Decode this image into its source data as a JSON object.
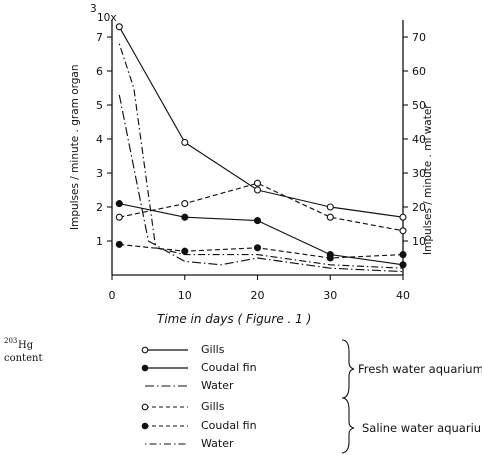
{
  "side_label": {
    "isotope": "203",
    "element": "Hg",
    "line2": "content"
  },
  "left_axis_multiplier": {
    "prefix": "3",
    "suffix": "10x"
  },
  "legend": {
    "groups": [
      {
        "label": "Fresh water aquarium",
        "entries": [
          {
            "label": "Gills",
            "marker": "open",
            "style": "solid"
          },
          {
            "label": "Coudal fin",
            "marker": "filled",
            "style": "solid"
          },
          {
            "label": "Water",
            "marker": "none",
            "style": "dashdot"
          }
        ]
      },
      {
        "label": "Saline   water aquarium",
        "entries": [
          {
            "label": "Gills",
            "marker": "open",
            "style": "dashed"
          },
          {
            "label": "Coudal fin",
            "marker": "filled",
            "style": "dashed"
          },
          {
            "label": "Water",
            "marker": "none",
            "style": "dotdashed"
          }
        ]
      }
    ]
  },
  "chart_data": {
    "type": "line",
    "xlabel": "Time  in  days  ( Figure . 1 )",
    "ylabel_left": "Impulses / minute . gram organ",
    "ylabel_right": "Impulses / minute . ml water",
    "xlim": [
      0,
      40
    ],
    "ylim_left": [
      0,
      7.5
    ],
    "ylim_right": [
      0,
      75
    ],
    "x_ticks": [
      0,
      10,
      20,
      30,
      40
    ],
    "x_tick_labels": [
      "0",
      "10",
      "20",
      "30",
      "40"
    ],
    "y_left_ticks": [
      1,
      2,
      3,
      4,
      5,
      6,
      7
    ],
    "y_left_tick_labels": [
      "1",
      "2",
      "3",
      "4",
      "5",
      "6",
      "7"
    ],
    "y_right_ticks": [
      10,
      20,
      30,
      40,
      50,
      60,
      70
    ],
    "y_right_tick_labels": [
      "10",
      "20",
      "30",
      "40",
      "50",
      "60",
      "70"
    ],
    "grid": false,
    "series": [
      {
        "name": "Gills",
        "axis": "left",
        "marker": "open",
        "style": "solid",
        "x": [
          1,
          10,
          20,
          30,
          40
        ],
        "y": [
          7.3,
          3.9,
          2.5,
          2.0,
          1.7
        ]
      },
      {
        "name": "Coudal fin",
        "axis": "left",
        "marker": "filled",
        "style": "solid",
        "x": [
          1,
          10,
          20,
          30,
          40
        ],
        "y": [
          2.1,
          1.7,
          1.6,
          0.6,
          0.3
        ]
      },
      {
        "name": "Water",
        "axis": "right",
        "marker": "none",
        "style": "dashdot",
        "x": [
          1,
          5,
          10,
          15,
          20,
          30,
          40
        ],
        "y": [
          53,
          10,
          4,
          3,
          5,
          2,
          1
        ]
      },
      {
        "name": "Gills",
        "axis": "left",
        "marker": "open",
        "style": "dashed",
        "x": [
          1,
          10,
          20,
          30,
          40
        ],
        "y": [
          1.7,
          2.1,
          2.7,
          1.7,
          1.3
        ]
      },
      {
        "name": "Coudal fin",
        "axis": "left",
        "marker": "filled",
        "style": "dashed",
        "x": [
          1,
          10,
          20,
          30,
          40
        ],
        "y": [
          0.9,
          0.7,
          0.8,
          0.5,
          0.6
        ]
      },
      {
        "name": "Water",
        "axis": "right",
        "marker": "none",
        "style": "dotdashed",
        "x": [
          1,
          3,
          6,
          10,
          20,
          30,
          40
        ],
        "y": [
          68,
          55,
          8,
          6,
          6,
          3,
          2
        ]
      }
    ]
  }
}
